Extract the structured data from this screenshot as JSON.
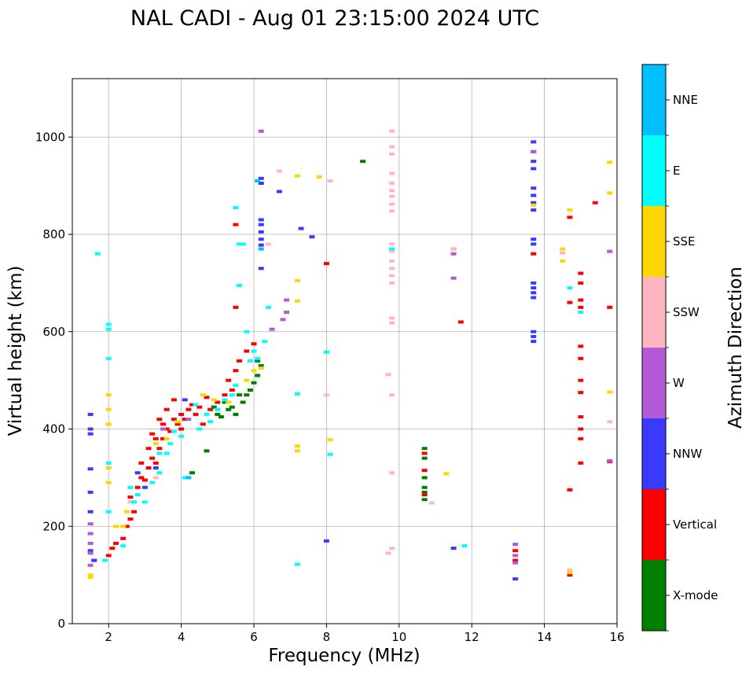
{
  "chart_data": {
    "type": "scatter",
    "title": "NAL CADI - Aug 01 23:15:00 2024 UTC",
    "xlabel": "Frequency (MHz)",
    "ylabel": "Virtual height (km)",
    "xlim": [
      1,
      16
    ],
    "ylim": [
      0,
      1120
    ],
    "xticks": [
      2,
      4,
      6,
      8,
      10,
      12,
      14,
      16
    ],
    "yticks": [
      0,
      200,
      400,
      600,
      800,
      1000
    ],
    "grid": true,
    "colorbar": {
      "label": "Azimuth Direction",
      "position": "right",
      "categories": [
        {
          "name": "X-mode",
          "color": "#008000"
        },
        {
          "name": "Vertical",
          "color": "#ff0000"
        },
        {
          "name": "NNW",
          "color": "#3a3aff"
        },
        {
          "name": "W",
          "color": "#b35ad6"
        },
        {
          "name": "SSW",
          "color": "#ffb6c1"
        },
        {
          "name": "SSE",
          "color": "#ffd700"
        },
        {
          "name": "E",
          "color": "#00ffff"
        },
        {
          "name": "NNE",
          "color": "#00bfff"
        }
      ]
    },
    "series": [
      {
        "name": "X-mode",
        "points": [
          [
            4.7,
            355
          ],
          [
            4.3,
            310
          ],
          [
            5.3,
            440
          ],
          [
            5.5,
            430
          ],
          [
            5.7,
            455
          ],
          [
            5.9,
            480
          ],
          [
            6.1,
            510
          ],
          [
            6.2,
            530
          ],
          [
            5.1,
            425
          ],
          [
            5.4,
            445
          ],
          [
            5.8,
            470
          ],
          [
            6.0,
            495
          ],
          [
            6.1,
            540
          ],
          [
            5.0,
            430
          ],
          [
            9.0,
            950
          ],
          [
            10.7,
            360
          ],
          [
            10.7,
            340
          ],
          [
            10.7,
            300
          ],
          [
            10.7,
            280
          ],
          [
            10.7,
            270
          ],
          [
            10.7,
            255
          ],
          [
            5.2,
            455
          ],
          [
            5.6,
            470
          ],
          [
            4.9,
            445
          ]
        ]
      },
      {
        "name": "Vertical",
        "points": [
          [
            1.6,
            130
          ],
          [
            2.0,
            140
          ],
          [
            2.1,
            155
          ],
          [
            2.2,
            165
          ],
          [
            2.4,
            175
          ],
          [
            2.5,
            200
          ],
          [
            2.6,
            215
          ],
          [
            2.7,
            230
          ],
          [
            2.6,
            260
          ],
          [
            2.8,
            280
          ],
          [
            2.9,
            300
          ],
          [
            3.0,
            295
          ],
          [
            3.1,
            320
          ],
          [
            3.2,
            340
          ],
          [
            3.3,
            330
          ],
          [
            3.4,
            360
          ],
          [
            3.5,
            380
          ],
          [
            3.6,
            400
          ],
          [
            3.7,
            395
          ],
          [
            3.8,
            420
          ],
          [
            3.9,
            410
          ],
          [
            4.0,
            430
          ],
          [
            4.1,
            420
          ],
          [
            4.2,
            440
          ],
          [
            4.3,
            450
          ],
          [
            4.4,
            430
          ],
          [
            4.5,
            445
          ],
          [
            4.6,
            410
          ],
          [
            4.7,
            465
          ],
          [
            4.8,
            440
          ],
          [
            5.0,
            455
          ],
          [
            5.2,
            470
          ],
          [
            5.4,
            480
          ],
          [
            5.5,
            520
          ],
          [
            5.6,
            540
          ],
          [
            5.8,
            560
          ],
          [
            6.0,
            575
          ],
          [
            5.3,
            500
          ],
          [
            5.5,
            650
          ],
          [
            5.5,
            820
          ],
          [
            3.6,
            440
          ],
          [
            3.8,
            460
          ],
          [
            4.0,
            400
          ],
          [
            3.4,
            420
          ],
          [
            3.5,
            410
          ],
          [
            3.3,
            380
          ],
          [
            3.2,
            390
          ],
          [
            3.1,
            360
          ],
          [
            2.9,
            330
          ],
          [
            8.0,
            740
          ],
          [
            10.7,
            350
          ],
          [
            10.7,
            315
          ],
          [
            10.7,
            265
          ],
          [
            11.5,
            770
          ],
          [
            11.7,
            620
          ],
          [
            13.2,
            150
          ],
          [
            13.2,
            130
          ],
          [
            13.7,
            760
          ],
          [
            14.7,
            835
          ],
          [
            14.7,
            660
          ],
          [
            14.7,
            275
          ],
          [
            14.7,
            100
          ],
          [
            15.0,
            720
          ],
          [
            15.0,
            700
          ],
          [
            15.0,
            665
          ],
          [
            15.0,
            650
          ],
          [
            15.0,
            570
          ],
          [
            15.0,
            545
          ],
          [
            15.0,
            500
          ],
          [
            15.0,
            475
          ],
          [
            15.0,
            425
          ],
          [
            15.0,
            400
          ],
          [
            15.0,
            380
          ],
          [
            15.0,
            330
          ],
          [
            15.4,
            865
          ],
          [
            15.8,
            650
          ],
          [
            15.8,
            333
          ]
        ]
      },
      {
        "name": "NNW",
        "points": [
          [
            1.5,
            430
          ],
          [
            1.5,
            400
          ],
          [
            1.5,
            390
          ],
          [
            1.5,
            318
          ],
          [
            1.5,
            270
          ],
          [
            1.5,
            230
          ],
          [
            1.5,
            150
          ],
          [
            1.6,
            130
          ],
          [
            6.2,
            915
          ],
          [
            6.2,
            905
          ],
          [
            6.2,
            830
          ],
          [
            6.2,
            820
          ],
          [
            6.2,
            805
          ],
          [
            6.2,
            790
          ],
          [
            6.2,
            778
          ],
          [
            6.2,
            730
          ],
          [
            6.7,
            888
          ],
          [
            7.3,
            812
          ],
          [
            7.6,
            795
          ],
          [
            8.0,
            170
          ],
          [
            11.5,
            155
          ],
          [
            13.2,
            92
          ],
          [
            13.7,
            990
          ],
          [
            13.7,
            970
          ],
          [
            13.7,
            950
          ],
          [
            13.7,
            935
          ],
          [
            13.7,
            895
          ],
          [
            13.7,
            880
          ],
          [
            13.7,
            865
          ],
          [
            13.7,
            850
          ],
          [
            13.7,
            790
          ],
          [
            13.7,
            780
          ],
          [
            13.7,
            700
          ],
          [
            13.7,
            690
          ],
          [
            13.7,
            680
          ],
          [
            13.7,
            670
          ],
          [
            13.7,
            600
          ],
          [
            13.7,
            590
          ],
          [
            13.7,
            580
          ],
          [
            3.3,
            320
          ],
          [
            3.0,
            280
          ],
          [
            2.8,
            310
          ],
          [
            4.1,
            460
          ]
        ]
      },
      {
        "name": "W",
        "points": [
          [
            1.5,
            205
          ],
          [
            1.5,
            185
          ],
          [
            1.5,
            165
          ],
          [
            1.5,
            145
          ],
          [
            1.5,
            120
          ],
          [
            6.2,
            1012
          ],
          [
            6.9,
            665
          ],
          [
            6.9,
            640
          ],
          [
            6.8,
            625
          ],
          [
            6.5,
            605
          ],
          [
            11.5,
            710
          ],
          [
            11.5,
            760
          ],
          [
            13.2,
            163
          ],
          [
            13.2,
            140
          ],
          [
            13.2,
            125
          ],
          [
            13.7,
            970
          ],
          [
            15.8,
            765
          ],
          [
            15.8,
            335
          ],
          [
            3.5,
            400
          ],
          [
            4.2,
            420
          ]
        ]
      },
      {
        "name": "SSW",
        "points": [
          [
            6.4,
            780
          ],
          [
            6.7,
            930
          ],
          [
            8.1,
            910
          ],
          [
            8.0,
            470
          ],
          [
            9.8,
            1012
          ],
          [
            9.8,
            980
          ],
          [
            9.8,
            965
          ],
          [
            9.8,
            925
          ],
          [
            9.8,
            905
          ],
          [
            9.8,
            890
          ],
          [
            9.8,
            878
          ],
          [
            9.8,
            862
          ],
          [
            9.8,
            848
          ],
          [
            9.8,
            780
          ],
          [
            9.8,
            765
          ],
          [
            9.8,
            745
          ],
          [
            9.8,
            730
          ],
          [
            9.8,
            715
          ],
          [
            9.8,
            700
          ],
          [
            9.8,
            628
          ],
          [
            9.8,
            618
          ],
          [
            9.8,
            470
          ],
          [
            9.7,
            512
          ],
          [
            9.8,
            310
          ],
          [
            9.8,
            155
          ],
          [
            9.7,
            145
          ],
          [
            11.5,
            770
          ],
          [
            10.9,
            248
          ],
          [
            14.5,
            762
          ],
          [
            14.7,
            110
          ],
          [
            15.8,
            415
          ],
          [
            3.3,
            300
          ],
          [
            2.6,
            250
          ]
        ]
      },
      {
        "name": "SSE",
        "points": [
          [
            1.5,
            100
          ],
          [
            1.5,
            95
          ],
          [
            2.0,
            470
          ],
          [
            2.0,
            440
          ],
          [
            2.0,
            410
          ],
          [
            2.0,
            320
          ],
          [
            2.0,
            290
          ],
          [
            2.2,
            200
          ],
          [
            2.4,
            200
          ],
          [
            2.5,
            230
          ],
          [
            3.3,
            370
          ],
          [
            3.6,
            380
          ],
          [
            3.9,
            415
          ],
          [
            4.6,
            470
          ],
          [
            5.3,
            455
          ],
          [
            5.5,
            490
          ],
          [
            5.8,
            500
          ],
          [
            6.0,
            520
          ],
          [
            6.2,
            525
          ],
          [
            4.9,
            460
          ],
          [
            7.2,
            920
          ],
          [
            7.2,
            705
          ],
          [
            7.2,
            663
          ],
          [
            7.2,
            365
          ],
          [
            7.2,
            355
          ],
          [
            7.8,
            918
          ],
          [
            8.1,
            378
          ],
          [
            11.3,
            308
          ],
          [
            13.7,
            860
          ],
          [
            14.5,
            770
          ],
          [
            14.5,
            745
          ],
          [
            14.7,
            850
          ],
          [
            14.7,
            105
          ],
          [
            15.8,
            948
          ],
          [
            15.8,
            885
          ],
          [
            15.8,
            476
          ]
        ]
      },
      {
        "name": "E",
        "points": [
          [
            1.7,
            760
          ],
          [
            2.0,
            615
          ],
          [
            2.0,
            605
          ],
          [
            2.0,
            545
          ],
          [
            2.0,
            330
          ],
          [
            2.0,
            230
          ],
          [
            1.9,
            130
          ],
          [
            2.4,
            160
          ],
          [
            2.6,
            280
          ],
          [
            2.7,
            250
          ],
          [
            2.8,
            265
          ],
          [
            3.0,
            250
          ],
          [
            3.2,
            290
          ],
          [
            3.4,
            310
          ],
          [
            3.6,
            350
          ],
          [
            3.7,
            370
          ],
          [
            4.0,
            385
          ],
          [
            4.1,
            300
          ],
          [
            4.5,
            400
          ],
          [
            4.8,
            415
          ],
          [
            5.0,
            440
          ],
          [
            5.2,
            460
          ],
          [
            5.4,
            470
          ],
          [
            5.5,
            490
          ],
          [
            5.6,
            695
          ],
          [
            5.7,
            780
          ],
          [
            5.8,
            600
          ],
          [
            6.0,
            560
          ],
          [
            6.1,
            545
          ],
          [
            6.3,
            580
          ],
          [
            6.4,
            650
          ],
          [
            5.5,
            855
          ],
          [
            5.6,
            780
          ],
          [
            7.2,
            472
          ],
          [
            7.2,
            122
          ],
          [
            8.0,
            558
          ],
          [
            8.1,
            348
          ],
          [
            9.8,
            770
          ],
          [
            11.8,
            160
          ],
          [
            14.7,
            690
          ],
          [
            15.0,
            640
          ],
          [
            3.4,
            350
          ],
          [
            3.8,
            395
          ],
          [
            4.4,
            450
          ],
          [
            4.7,
            430
          ],
          [
            5.9,
            540
          ]
        ]
      },
      {
        "name": "NNE",
        "points": [
          [
            6.1,
            910
          ],
          [
            6.2,
            770
          ],
          [
            4.2,
            300
          ]
        ]
      }
    ]
  }
}
